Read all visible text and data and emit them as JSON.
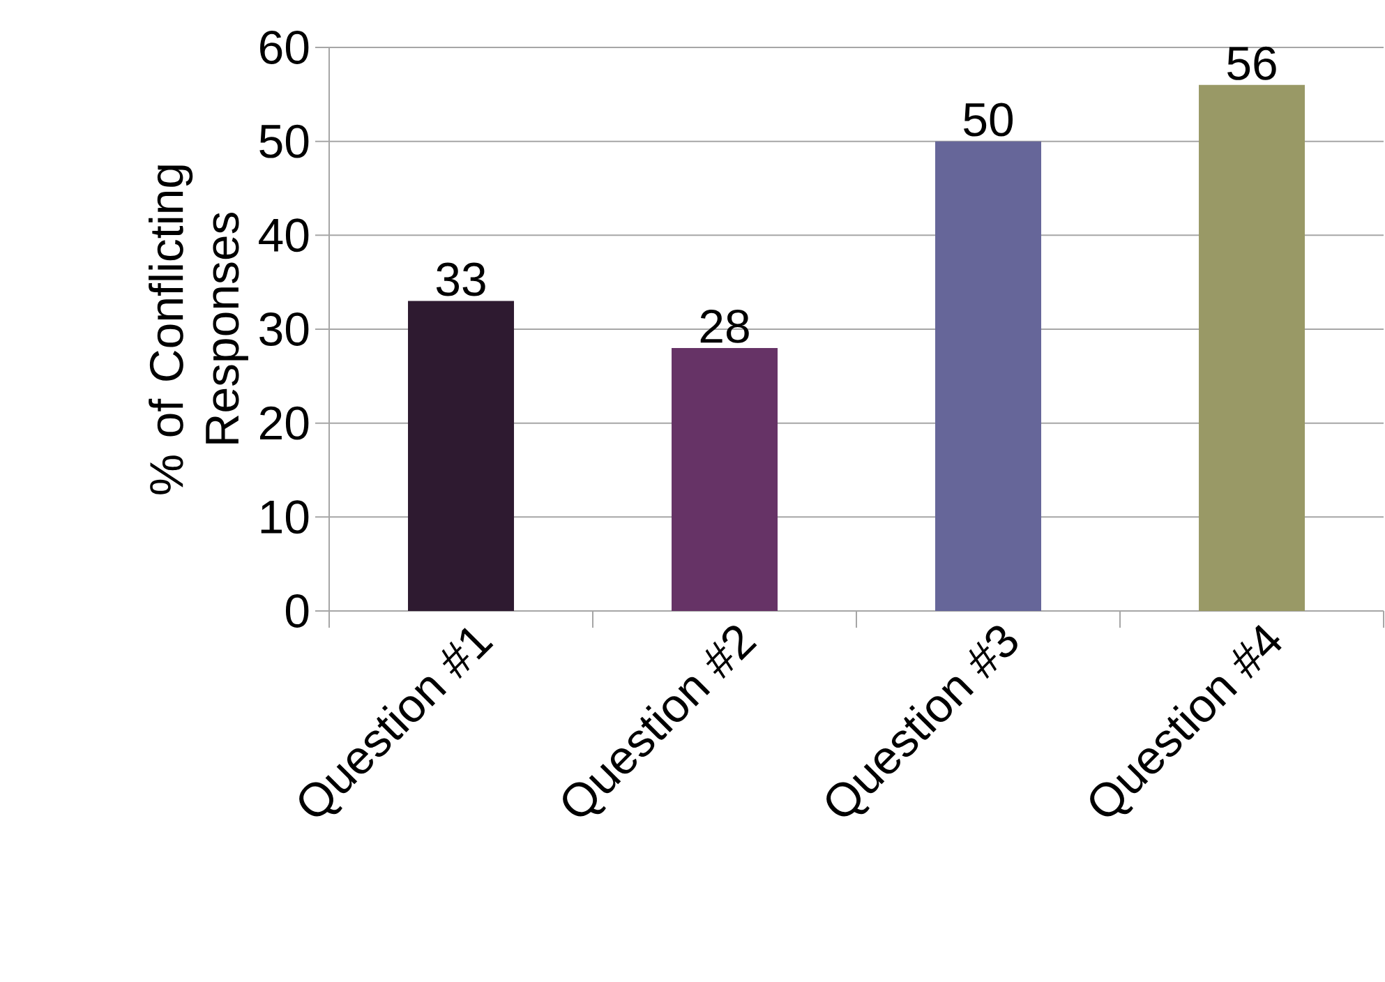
{
  "chart_data": {
    "type": "bar",
    "ylabel": "% of Conflicting Responses",
    "categories": [
      "Question #1",
      "Question #2",
      "Question #3",
      "Question #4"
    ],
    "values": [
      33,
      28,
      50,
      56
    ],
    "colors": [
      "#2e1a30",
      "#663366",
      "#666699",
      "#999966"
    ],
    "ylim": [
      0,
      60
    ],
    "yticks": [
      0,
      10,
      20,
      30,
      40,
      50,
      60
    ],
    "grid": "y",
    "data_labels": true
  }
}
